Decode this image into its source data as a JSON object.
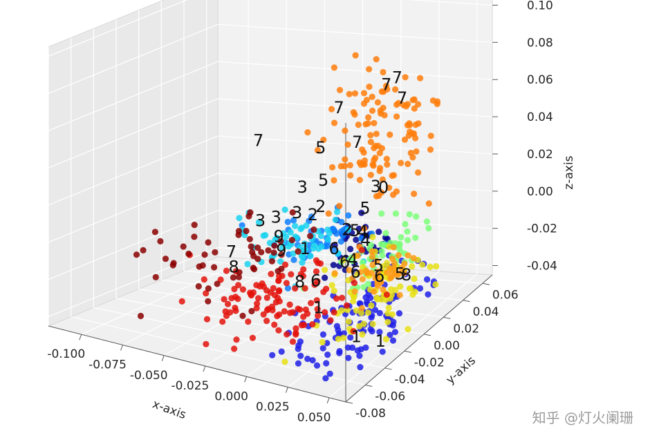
{
  "watermark": "知乎 @灯火阑珊",
  "chart_data": {
    "type": "scatter",
    "projection": "3d",
    "title": "",
    "xlabel": "x-axis",
    "ylabel": "y-axis",
    "zlabel": "z-axis",
    "xlim": [
      -0.12,
      0.06
    ],
    "ylim": [
      -0.08,
      0.07
    ],
    "zlim": [
      -0.045,
      0.105
    ],
    "x_ticks": [
      "-0.100",
      "-0.075",
      "-0.050",
      "-0.025",
      "0.000",
      "0.025",
      "0.050"
    ],
    "y_ticks": [
      "-0.08",
      "-0.06",
      "-0.04",
      "-0.02",
      "0.00",
      "0.02",
      "0.04",
      "0.06"
    ],
    "z_ticks": [
      "-0.04",
      "-0.02",
      "0.00",
      "0.02",
      "0.04",
      "0.06",
      "0.08",
      "0.10"
    ],
    "grid": true,
    "colormap": "jet",
    "point_size": "small dots",
    "classes": [
      {
        "label": "0",
        "color": "#00008f",
        "points_shown": 40,
        "center": [
          0.02,
          0.0,
          0.0
        ],
        "spread": [
          0.008,
          0.012,
          0.006
        ]
      },
      {
        "label": "1",
        "color": "#1f1fe8",
        "points_shown": 110,
        "center": [
          0.03,
          -0.02,
          -0.035
        ],
        "spread": [
          0.014,
          0.03,
          0.008
        ]
      },
      {
        "label": "2",
        "color": "#0d7fff",
        "points_shown": 45,
        "center": [
          -0.005,
          0.005,
          -0.005
        ],
        "spread": [
          0.012,
          0.012,
          0.006
        ]
      },
      {
        "label": "3",
        "color": "#1ad3f0",
        "points_shown": 60,
        "center": [
          -0.03,
          0.01,
          -0.01
        ],
        "spread": [
          0.015,
          0.015,
          0.006
        ]
      },
      {
        "label": "4",
        "color": "#7cff7a",
        "points_shown": 55,
        "center": [
          0.025,
          0.01,
          -0.01
        ],
        "spread": [
          0.01,
          0.015,
          0.008
        ]
      },
      {
        "label": "5",
        "color": "#e6e013",
        "points_shown": 80,
        "center": [
          0.03,
          0.0,
          -0.025
        ],
        "spread": [
          0.012,
          0.02,
          0.008
        ]
      },
      {
        "label": "6",
        "color": "#ff9a14",
        "points_shown": 45,
        "center": [
          0.03,
          0.005,
          -0.02
        ],
        "spread": [
          0.01,
          0.015,
          0.006
        ]
      },
      {
        "label": "7",
        "color": "#ff7c0a",
        "points_shown": 120,
        "center": [
          0.02,
          0.02,
          0.045
        ],
        "spread": [
          0.015,
          0.012,
          0.02
        ]
      },
      {
        "label": "8",
        "color": "#e3120b",
        "points_shown": 110,
        "center": [
          -0.02,
          -0.02,
          -0.03
        ],
        "spread": [
          0.02,
          0.022,
          0.008
        ]
      },
      {
        "label": "9",
        "color": "#8b0000",
        "points_shown": 55,
        "center": [
          -0.055,
          0.0,
          -0.02
        ],
        "spread": [
          0.022,
          0.025,
          0.01
        ]
      }
    ],
    "text_annotations": [
      {
        "text": "7",
        "x": 0.04,
        "y": 0.005,
        "z": 0.085
      },
      {
        "text": "7",
        "x": 0.03,
        "y": 0.01,
        "z": 0.078
      },
      {
        "text": "7",
        "x": 0.04,
        "y": 0.01,
        "z": 0.072
      },
      {
        "text": "7",
        "x": -0.01,
        "y": 0.025,
        "z": 0.055
      },
      {
        "text": "7",
        "x": 0.005,
        "y": 0.02,
        "z": 0.04
      },
      {
        "text": "7",
        "x": -0.065,
        "y": 0.03,
        "z": 0.03
      },
      {
        "text": "7",
        "x": -0.065,
        "y": 0.005,
        "z": -0.022
      },
      {
        "text": "5",
        "x": -0.025,
        "y": 0.03,
        "z": 0.03
      },
      {
        "text": "5",
        "x": -0.02,
        "y": 0.025,
        "z": 0.015
      },
      {
        "text": "5",
        "x": 0.01,
        "y": 0.02,
        "z": 0.005
      },
      {
        "text": "5",
        "x": 0.025,
        "y": 0.01,
        "z": -0.02
      },
      {
        "text": "3",
        "x": -0.03,
        "y": 0.02,
        "z": 0.012
      },
      {
        "text": "3",
        "x": 0.02,
        "y": 0.015,
        "z": 0.02
      },
      {
        "text": "0",
        "x": 0.025,
        "y": 0.015,
        "z": 0.02
      },
      {
        "text": "3",
        "x": -0.05,
        "y": 0.01,
        "z": -0.005
      },
      {
        "text": "3",
        "x": -0.04,
        "y": 0.01,
        "z": -0.002
      },
      {
        "text": "3",
        "x": -0.03,
        "y": 0.015,
        "z": 0.0
      },
      {
        "text": "2",
        "x": -0.02,
        "y": 0.015,
        "z": 0.0
      },
      {
        "text": "2",
        "x": -0.015,
        "y": 0.015,
        "z": 0.005
      },
      {
        "text": "2",
        "x": 0.005,
        "y": 0.01,
        "z": -0.003
      },
      {
        "text": "5",
        "x": 0.01,
        "y": 0.01,
        "z": -0.003
      },
      {
        "text": "4",
        "x": 0.015,
        "y": 0.01,
        "z": -0.003
      },
      {
        "text": "4",
        "x": 0.02,
        "y": 0.005,
        "z": -0.005
      },
      {
        "text": "9",
        "x": -0.035,
        "y": 0.005,
        "z": -0.01
      },
      {
        "text": "9",
        "x": -0.03,
        "y": 0.0,
        "z": -0.015
      },
      {
        "text": "1",
        "x": -0.015,
        "y": 0.0,
        "z": -0.012
      },
      {
        "text": "6",
        "x": 0.0,
        "y": 0.005,
        "z": -0.012
      },
      {
        "text": "6",
        "x": 0.01,
        "y": 0.0,
        "z": -0.016
      },
      {
        "text": "4",
        "x": 0.015,
        "y": 0.0,
        "z": -0.014
      },
      {
        "text": "6",
        "x": 0.02,
        "y": -0.005,
        "z": -0.018
      },
      {
        "text": "6",
        "x": 0.035,
        "y": -0.005,
        "z": -0.018
      },
      {
        "text": "5",
        "x": 0.048,
        "y": -0.005,
        "z": -0.015
      },
      {
        "text": "8",
        "x": 0.052,
        "y": -0.005,
        "z": -0.015
      },
      {
        "text": "8",
        "x": -0.06,
        "y": 0.0,
        "z": -0.028
      },
      {
        "text": "8",
        "x": -0.015,
        "y": -0.005,
        "z": -0.028
      },
      {
        "text": "6",
        "x": -0.005,
        "y": -0.005,
        "z": -0.026
      },
      {
        "text": "1",
        "x": 0.0,
        "y": -0.01,
        "z": -0.038
      },
      {
        "text": "1",
        "x": 0.03,
        "y": -0.02,
        "z": -0.045
      },
      {
        "text": "1",
        "x": 0.045,
        "y": -0.02,
        "z": -0.045
      }
    ]
  }
}
